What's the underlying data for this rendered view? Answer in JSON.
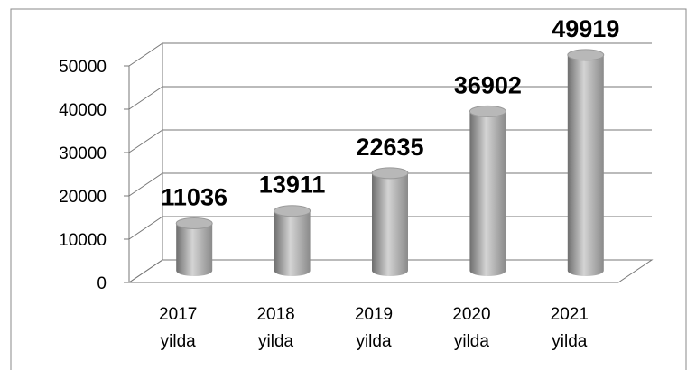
{
  "chart_data": {
    "type": "bar3d",
    "categories": [
      "2017 yilda",
      "2018 yilda",
      "2019 yilda",
      "2020 yilda",
      "2021 yilda"
    ],
    "values": [
      11036,
      13911,
      22635,
      36902,
      49919
    ],
    "color": "#a6a6a6",
    "ylim": [
      0,
      50000
    ],
    "yticks": [
      0,
      10000,
      20000,
      30000,
      40000,
      50000
    ],
    "grid": true
  }
}
